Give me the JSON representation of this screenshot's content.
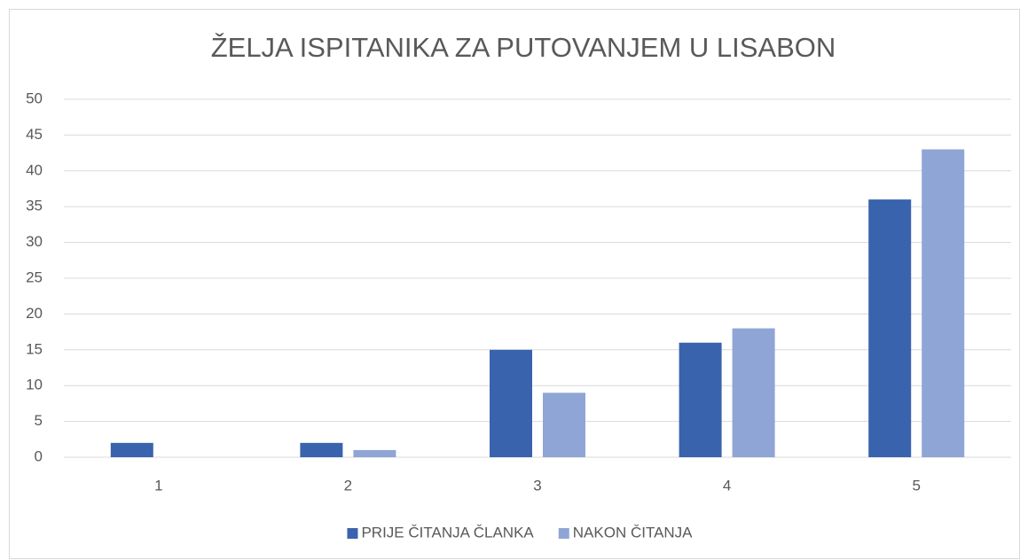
{
  "chart_data": {
    "type": "bar",
    "title": "ŽELJA ISPITANIKA ZA PUTOVANJEM U LISABON",
    "categories": [
      "1",
      "2",
      "3",
      "4",
      "5"
    ],
    "series": [
      {
        "name": "PRIJE ČITANJA ČLANKA",
        "color": "#3a63ad",
        "values": [
          2,
          2,
          15,
          16,
          36
        ]
      },
      {
        "name": "NAKON ČITANJA",
        "color": "#8fa5d5",
        "values": [
          0,
          1,
          9,
          18,
          43
        ]
      }
    ],
    "ylim": [
      0,
      50
    ],
    "yticks": [
      0,
      5,
      10,
      15,
      20,
      25,
      30,
      35,
      40,
      45,
      50
    ],
    "grid": true,
    "legend": "bottom"
  }
}
